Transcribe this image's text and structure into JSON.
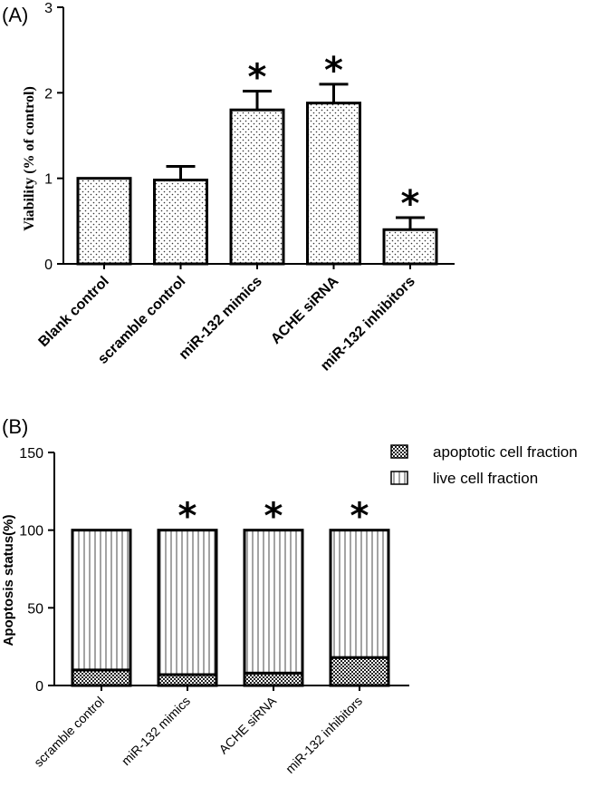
{
  "chart_data": [
    {
      "type": "bar",
      "panel_label": "(A)",
      "ylabel": "Viability   (% of control)",
      "ylim": [
        0,
        3
      ],
      "yticks": [
        "0",
        "1",
        "2",
        "3"
      ],
      "categories": [
        "Blank control",
        "scramble control",
        "miR-132 mimics",
        "ACHE siRNA",
        "miR-132  inhibitors"
      ],
      "values": [
        1.0,
        0.98,
        1.8,
        1.88,
        0.4
      ],
      "errors": [
        0,
        0.16,
        0.22,
        0.22,
        0.14
      ],
      "significant": [
        false,
        false,
        true,
        true,
        true
      ],
      "significance_marker": "*",
      "grid": false,
      "fill_pattern": "dots"
    },
    {
      "type": "bar",
      "stacked": true,
      "panel_label": "(B)",
      "ylabel": "Apoptosis status(%)",
      "ylim": [
        0,
        150
      ],
      "yticks": [
        "0",
        "50",
        "100",
        "150"
      ],
      "categories": [
        "scramble control",
        "miR-132 mimics",
        "ACHE siRNA",
        "miR-132  inhibitors"
      ],
      "series": [
        {
          "name": "apoptotic cell fraction",
          "values": [
            10,
            7,
            8,
            18
          ],
          "pattern": "checker"
        },
        {
          "name": "live cell fraction",
          "values": [
            90,
            93,
            92,
            82
          ],
          "pattern": "vertical-lines"
        }
      ],
      "significant": [
        false,
        true,
        true,
        true
      ],
      "significance_marker": "*",
      "legend_position": "top-right",
      "grid": false
    }
  ]
}
